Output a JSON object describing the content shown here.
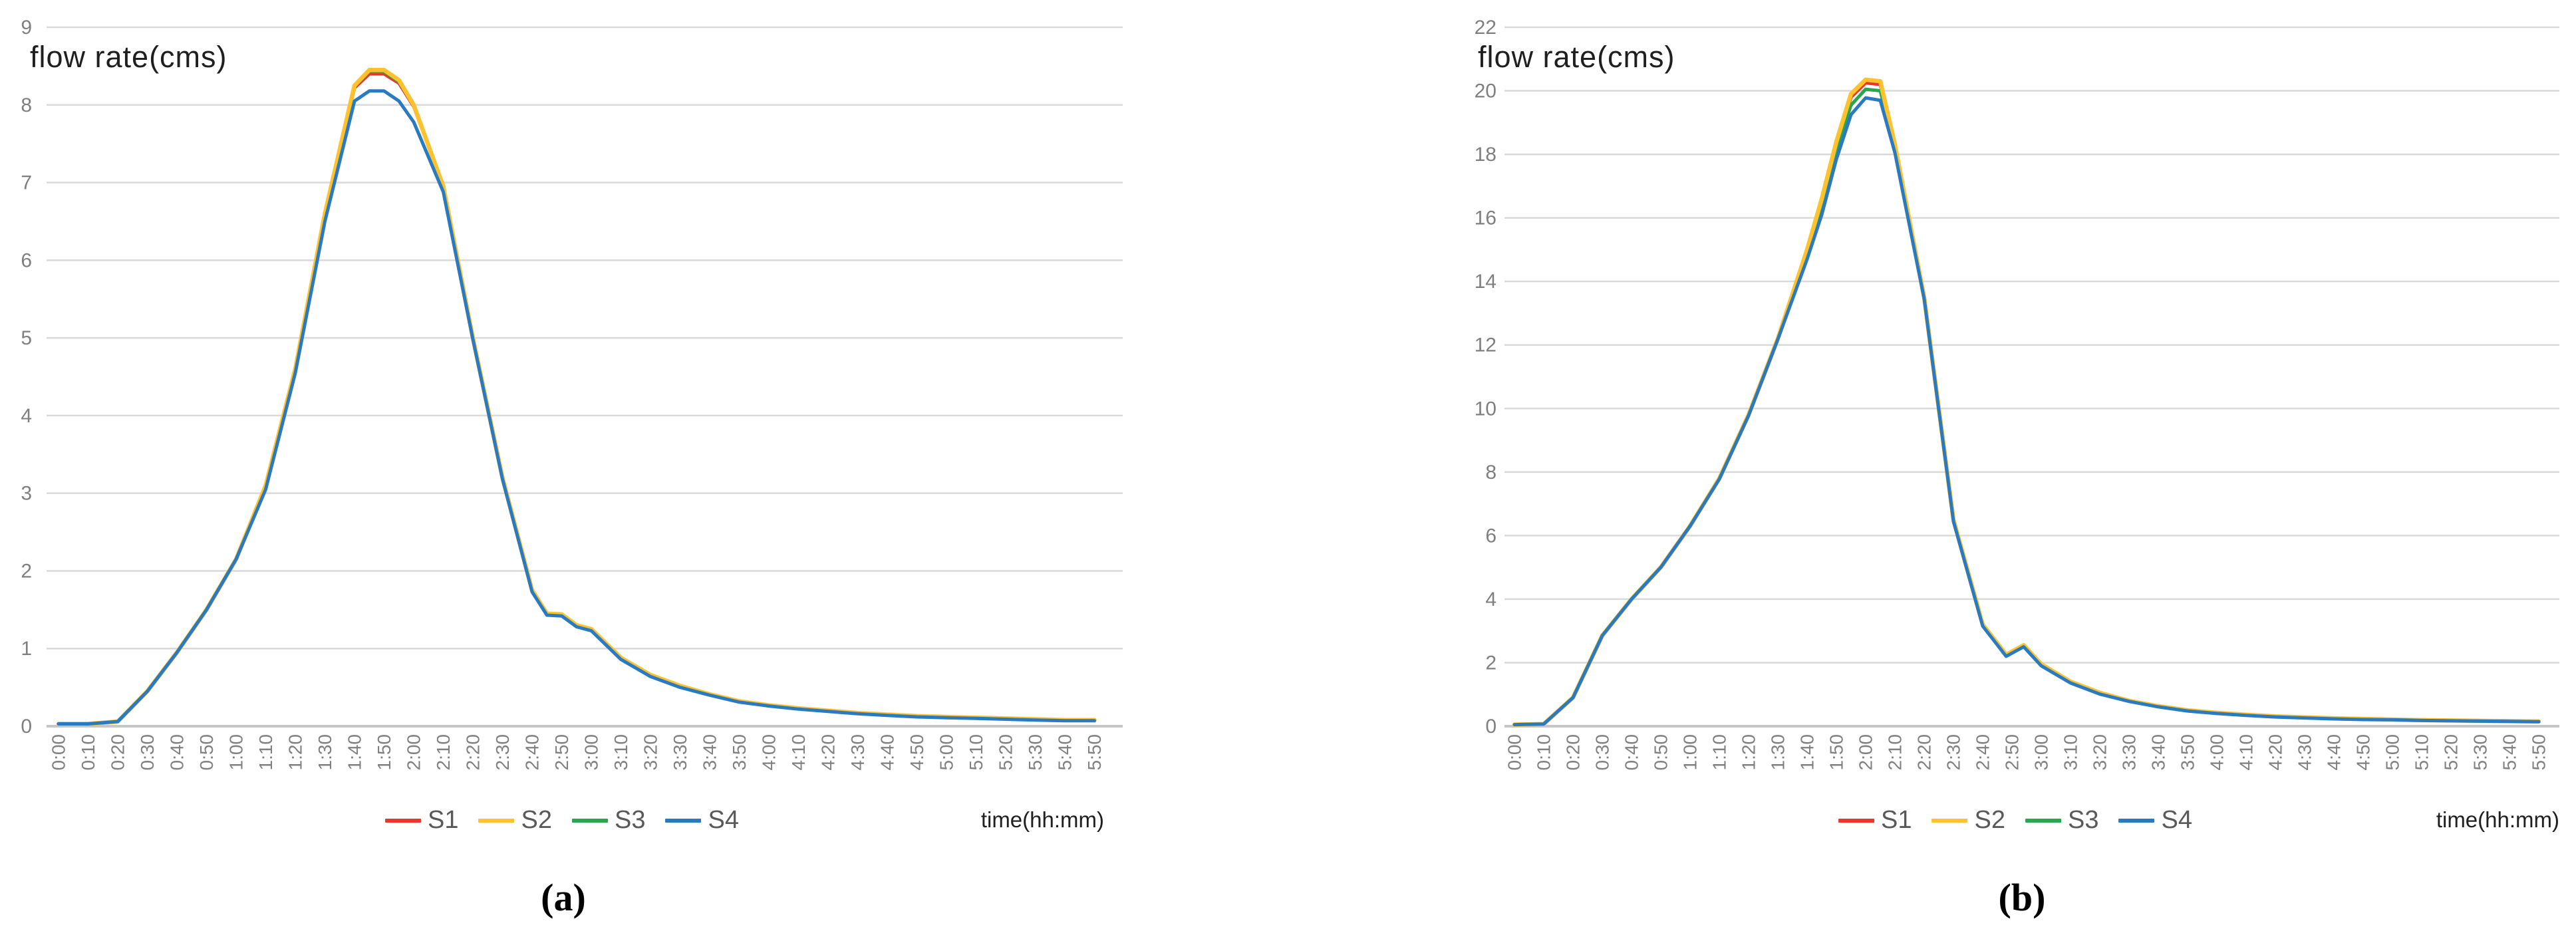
{
  "figure": {
    "kind": "two-panel line figure",
    "background": "#ffffff",
    "grid_color": "#d9d9d9",
    "baseline_color": "#c6c6c6",
    "tick_label_color": "#808080",
    "legend_text_color": "#595959"
  },
  "chart_data": [
    {
      "type": "line",
      "panel": "a",
      "caption": "(a)",
      "title": "flow rate(cms)",
      "xlabel": "time(hh:mm)",
      "ylabel": "flow rate(cms)",
      "ylim": [
        0,
        9
      ],
      "y_ticks": [
        0,
        1,
        2,
        3,
        4,
        5,
        6,
        7,
        8,
        9
      ],
      "grid": true,
      "legend_position": "bottom",
      "x_tick_labels": [
        "0:00",
        "0:10",
        "0:20",
        "0:30",
        "0:40",
        "0:50",
        "1:00",
        "1:10",
        "1:20",
        "1:30",
        "1:40",
        "1:50",
        "2:00",
        "2:10",
        "2:20",
        "2:30",
        "2:40",
        "2:50",
        "3:00",
        "3:10",
        "3:20",
        "3:30",
        "3:40",
        "3:50",
        "4:00",
        "4:10",
        "4:20",
        "4:30",
        "4:40",
        "4:50",
        "5:00",
        "5:10",
        "5:20",
        "5:30",
        "5:40",
        "5:50"
      ],
      "x_minutes": [
        0,
        10,
        20,
        30,
        40,
        50,
        60,
        70,
        80,
        90,
        100,
        105,
        110,
        115,
        120,
        130,
        140,
        150,
        160,
        165,
        170,
        175,
        180,
        190,
        200,
        210,
        220,
        230,
        240,
        250,
        260,
        270,
        280,
        290,
        300,
        310,
        320,
        330,
        340,
        350
      ],
      "series": [
        {
          "name": "S1",
          "color": "#e8372c",
          "values": [
            0.03,
            0.03,
            0.06,
            0.45,
            0.95,
            1.5,
            2.15,
            3.1,
            4.6,
            6.6,
            8.22,
            8.4,
            8.4,
            8.28,
            7.98,
            6.95,
            5.0,
            3.2,
            1.75,
            1.45,
            1.44,
            1.3,
            1.25,
            0.88,
            0.66,
            0.52,
            0.41,
            0.32,
            0.27,
            0.23,
            0.2,
            0.17,
            0.15,
            0.13,
            0.12,
            0.11,
            0.1,
            0.09,
            0.08,
            0.08
          ]
        },
        {
          "name": "S2",
          "color": "#fdc22d",
          "values": [
            0.03,
            0.03,
            0.06,
            0.45,
            0.95,
            1.5,
            2.15,
            3.1,
            4.6,
            6.6,
            8.25,
            8.45,
            8.45,
            8.32,
            8.0,
            6.95,
            5.0,
            3.2,
            1.75,
            1.45,
            1.44,
            1.3,
            1.25,
            0.88,
            0.66,
            0.52,
            0.41,
            0.32,
            0.27,
            0.23,
            0.2,
            0.17,
            0.15,
            0.13,
            0.12,
            0.11,
            0.1,
            0.09,
            0.08,
            0.08
          ]
        },
        {
          "name": "S3",
          "color": "#2aa64c",
          "values": [
            0.03,
            0.03,
            0.06,
            0.45,
            0.95,
            1.5,
            2.15,
            3.1,
            4.6,
            6.6,
            8.24,
            8.43,
            8.43,
            8.3,
            7.99,
            6.95,
            5.0,
            3.2,
            1.75,
            1.45,
            1.44,
            1.3,
            1.25,
            0.88,
            0.66,
            0.52,
            0.41,
            0.32,
            0.27,
            0.23,
            0.2,
            0.17,
            0.15,
            0.13,
            0.12,
            0.11,
            0.1,
            0.09,
            0.08,
            0.08
          ]
        },
        {
          "name": "S4",
          "color": "#2a7ac2",
          "values": [
            0.03,
            0.03,
            0.06,
            0.45,
            0.95,
            1.5,
            2.15,
            3.05,
            4.55,
            6.5,
            8.05,
            8.18,
            8.18,
            8.05,
            7.78,
            6.88,
            4.98,
            3.18,
            1.73,
            1.43,
            1.42,
            1.28,
            1.23,
            0.86,
            0.64,
            0.5,
            0.4,
            0.31,
            0.26,
            0.22,
            0.19,
            0.16,
            0.14,
            0.12,
            0.11,
            0.1,
            0.09,
            0.08,
            0.07,
            0.07
          ]
        }
      ]
    },
    {
      "type": "line",
      "panel": "b",
      "caption": "(b)",
      "title": "flow rate(cms)",
      "xlabel": "time(hh:mm)",
      "ylabel": "flow rate(cms)",
      "ylim": [
        0,
        22
      ],
      "y_ticks": [
        0,
        2,
        4,
        6,
        8,
        10,
        12,
        14,
        16,
        18,
        20,
        22
      ],
      "grid": true,
      "legend_position": "bottom",
      "x_tick_labels": [
        "0:00",
        "0:10",
        "0:20",
        "0:30",
        "0:40",
        "0:50",
        "1:00",
        "1:10",
        "1:20",
        "1:30",
        "1:40",
        "1:50",
        "2:00",
        "2:10",
        "2:20",
        "2:30",
        "2:40",
        "2:50",
        "3:00",
        "3:10",
        "3:20",
        "3:30",
        "3:40",
        "3:50",
        "4:00",
        "4:10",
        "4:20",
        "4:30",
        "4:40",
        "4:50",
        "5:00",
        "5:10",
        "5:20",
        "5:30",
        "5:40",
        "5:50"
      ],
      "x_minutes": [
        0,
        10,
        20,
        30,
        40,
        50,
        60,
        70,
        80,
        90,
        100,
        105,
        110,
        115,
        120,
        125,
        130,
        140,
        150,
        160,
        168,
        174,
        180,
        190,
        200,
        210,
        220,
        230,
        240,
        250,
        260,
        270,
        280,
        290,
        300,
        310,
        320,
        330,
        340,
        350
      ],
      "series": [
        {
          "name": "S1",
          "color": "#e8372c",
          "values": [
            0.05,
            0.07,
            0.9,
            2.85,
            4.0,
            5.0,
            6.3,
            7.8,
            9.8,
            12.2,
            15.0,
            16.5,
            18.3,
            19.8,
            20.25,
            20.2,
            18.25,
            13.5,
            6.5,
            3.2,
            2.25,
            2.55,
            1.95,
            1.4,
            1.05,
            0.8,
            0.63,
            0.5,
            0.42,
            0.36,
            0.31,
            0.28,
            0.25,
            0.23,
            0.21,
            0.19,
            0.18,
            0.17,
            0.16,
            0.15
          ]
        },
        {
          "name": "S2",
          "color": "#fdc22d",
          "values": [
            0.05,
            0.07,
            0.9,
            2.85,
            4.0,
            5.0,
            6.3,
            7.8,
            9.8,
            12.2,
            15.0,
            16.6,
            18.4,
            19.9,
            20.35,
            20.3,
            18.3,
            13.5,
            6.5,
            3.2,
            2.25,
            2.55,
            1.95,
            1.4,
            1.05,
            0.8,
            0.63,
            0.5,
            0.42,
            0.36,
            0.31,
            0.28,
            0.25,
            0.23,
            0.21,
            0.19,
            0.18,
            0.17,
            0.16,
            0.15
          ]
        },
        {
          "name": "S3",
          "color": "#2aa64c",
          "values": [
            0.05,
            0.07,
            0.9,
            2.85,
            4.0,
            5.0,
            6.3,
            7.8,
            9.8,
            12.2,
            14.85,
            16.35,
            18.1,
            19.55,
            20.05,
            20.0,
            18.15,
            13.48,
            6.48,
            3.18,
            2.23,
            2.53,
            1.93,
            1.38,
            1.03,
            0.79,
            0.62,
            0.49,
            0.41,
            0.35,
            0.3,
            0.27,
            0.24,
            0.22,
            0.2,
            0.19,
            0.18,
            0.17,
            0.16,
            0.15
          ]
        },
        {
          "name": "S4",
          "color": "#2a7ac2",
          "values": [
            0.05,
            0.07,
            0.9,
            2.85,
            4.0,
            5.0,
            6.3,
            7.78,
            9.78,
            12.18,
            14.7,
            16.1,
            17.85,
            19.25,
            19.78,
            19.7,
            18.05,
            13.45,
            6.45,
            3.15,
            2.2,
            2.5,
            1.9,
            1.36,
            1.01,
            0.78,
            0.61,
            0.48,
            0.4,
            0.34,
            0.29,
            0.26,
            0.23,
            0.21,
            0.2,
            0.18,
            0.17,
            0.16,
            0.15,
            0.14
          ]
        }
      ]
    }
  ]
}
